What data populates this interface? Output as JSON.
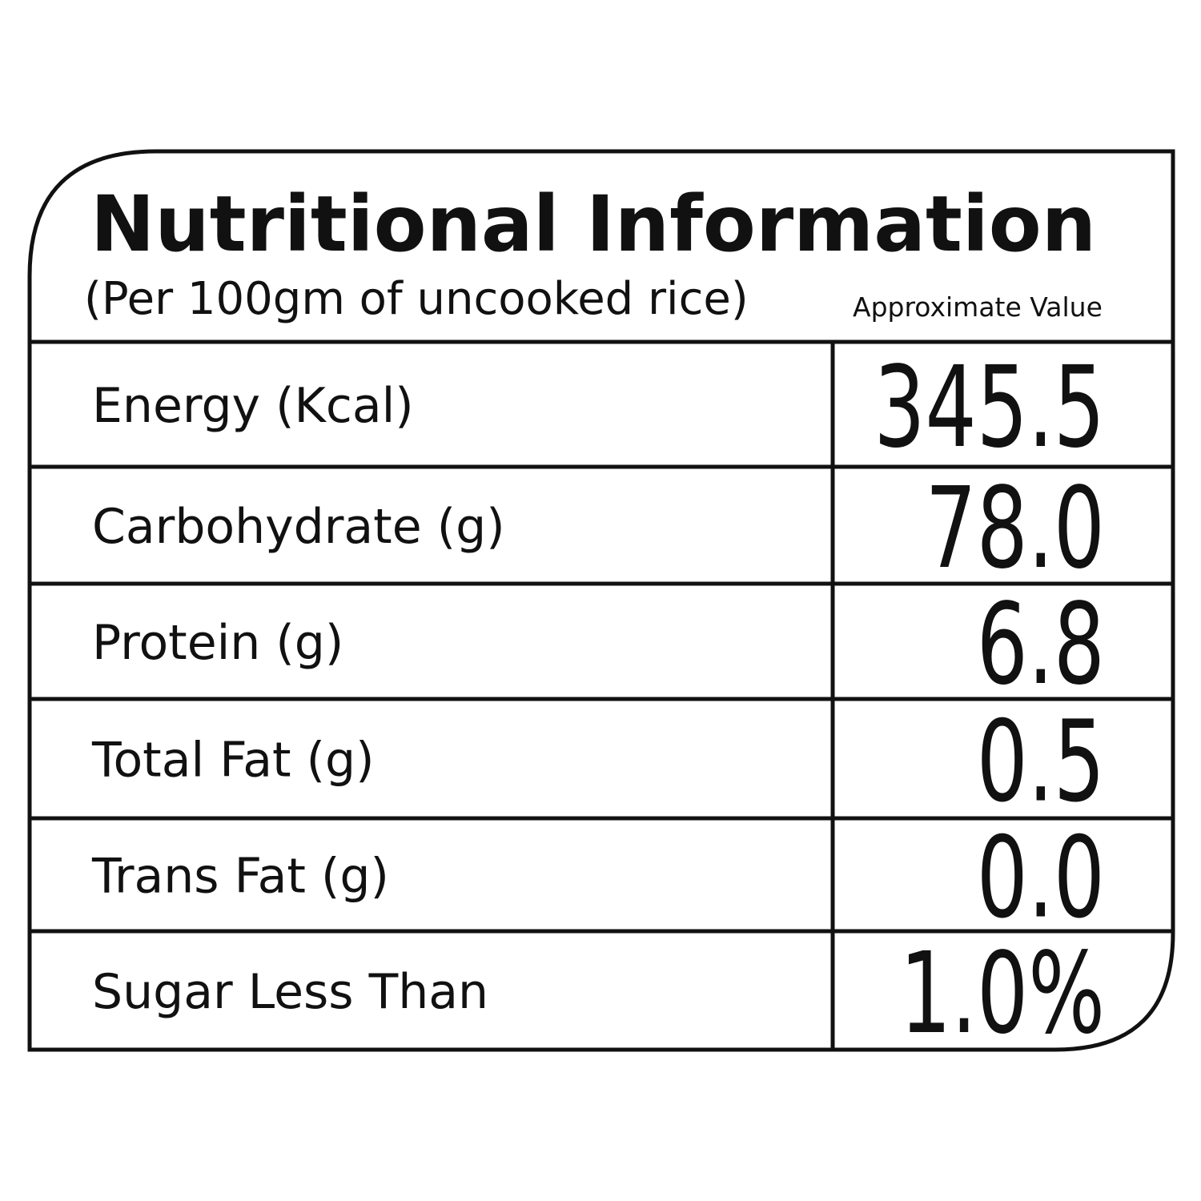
{
  "header": {
    "title": "Nutritional Information",
    "subtitle": "(Per 100gm of uncooked rice)",
    "column_label": "Approximate Value"
  },
  "table": {
    "rows": [
      [
        "Energy (Kcal)",
        "345.5"
      ],
      [
        "Carbohydrate (g)",
        "78.0"
      ],
      [
        "Protein (g)",
        "6.8"
      ],
      [
        "Total Fat (g)",
        "0.5"
      ],
      [
        "Trans Fat (g)",
        "0.0"
      ],
      [
        "Sugar Less Than",
        "1.0%"
      ]
    ]
  }
}
